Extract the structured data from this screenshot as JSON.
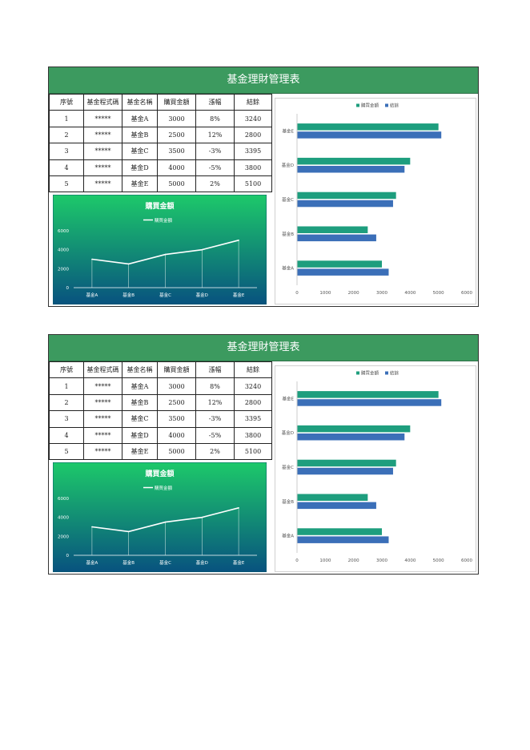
{
  "sheets": [
    {
      "title": "基金理財管理表",
      "headers": [
        "序號",
        "基金程式碼",
        "基金名稱",
        "購買金額",
        "漲幅",
        "結餘"
      ],
      "rows": [
        [
          "1",
          "*****",
          "基金A",
          "3000",
          "8%",
          "3240"
        ],
        [
          "2",
          "*****",
          "基金B",
          "2500",
          "12%",
          "2800"
        ],
        [
          "3",
          "*****",
          "基金C",
          "3500",
          "-3%",
          "3395"
        ],
        [
          "4",
          "*****",
          "基金D",
          "4000",
          "-5%",
          "3800"
        ],
        [
          "5",
          "*****",
          "基金E",
          "5000",
          "2%",
          "5100"
        ]
      ]
    },
    {
      "title": "基金理財管理表",
      "headers": [
        "序號",
        "基金程式碼",
        "基金名稱",
        "購買金額",
        "漲幅",
        "結餘"
      ],
      "rows": [
        [
          "1",
          "*****",
          "基金A",
          "3000",
          "8%",
          "3240"
        ],
        [
          "2",
          "*****",
          "基金B",
          "2500",
          "12%",
          "2800"
        ],
        [
          "3",
          "*****",
          "基金C",
          "3500",
          "-3%",
          "3395"
        ],
        [
          "4",
          "*****",
          "基金D",
          "4000",
          "-5%",
          "3800"
        ],
        [
          "5",
          "*****",
          "基金E",
          "5000",
          "2%",
          "5100"
        ]
      ]
    }
  ],
  "chart_data": [
    {
      "type": "line",
      "title": "購買金額",
      "categories": [
        "基金A",
        "基金B",
        "基金C",
        "基金D",
        "基金E"
      ],
      "series": [
        {
          "name": "購買金額",
          "values": [
            3000,
            2500,
            3500,
            4000,
            5000
          ]
        }
      ],
      "yticks": [
        "0",
        "2000",
        "4000",
        "6000"
      ],
      "ylim": [
        0,
        6000
      ],
      "legend": "top",
      "colors": {
        "bg_top": "#1dc96a",
        "bg_bottom": "#08527f",
        "line": "#ffffff"
      }
    },
    {
      "type": "bar",
      "orientation": "horizontal",
      "categories": [
        "基金A",
        "基金B",
        "基金C",
        "基金D",
        "基金E"
      ],
      "series": [
        {
          "name": "購買金額",
          "values": [
            3000,
            2500,
            3500,
            4000,
            5000
          ],
          "color": "#1e9e7e"
        },
        {
          "name": "結餘",
          "values": [
            3240,
            2800,
            3395,
            3800,
            5100
          ],
          "color": "#3b6fb8"
        }
      ],
      "xticks": [
        "0",
        "1000",
        "2000",
        "3000",
        "4000",
        "5000",
        "6000"
      ],
      "xlim": [
        0,
        6000
      ],
      "legend": "top"
    },
    {
      "type": "line",
      "title": "購買金額",
      "categories": [
        "基金A",
        "基金B",
        "基金C",
        "基金D",
        "基金E"
      ],
      "series": [
        {
          "name": "購買金額",
          "values": [
            3000,
            2500,
            3500,
            4000,
            5000
          ]
        }
      ],
      "yticks": [
        "0",
        "2000",
        "4000",
        "6000"
      ],
      "ylim": [
        0,
        6000
      ],
      "legend": "top",
      "colors": {
        "bg_top": "#1dc96a",
        "bg_bottom": "#08527f",
        "line": "#ffffff"
      }
    },
    {
      "type": "bar",
      "orientation": "horizontal",
      "categories": [
        "基金A",
        "基金B",
        "基金C",
        "基金D",
        "基金E"
      ],
      "series": [
        {
          "name": "購買金額",
          "values": [
            3000,
            2500,
            3500,
            4000,
            5000
          ],
          "color": "#1e9e7e"
        },
        {
          "name": "結餘",
          "values": [
            3240,
            2800,
            3395,
            3800,
            5100
          ],
          "color": "#3b6fb8"
        }
      ],
      "xticks": [
        "0",
        "1000",
        "2000",
        "3000",
        "4000",
        "5000",
        "6000"
      ],
      "xlim": [
        0,
        6000
      ],
      "legend": "top"
    }
  ]
}
